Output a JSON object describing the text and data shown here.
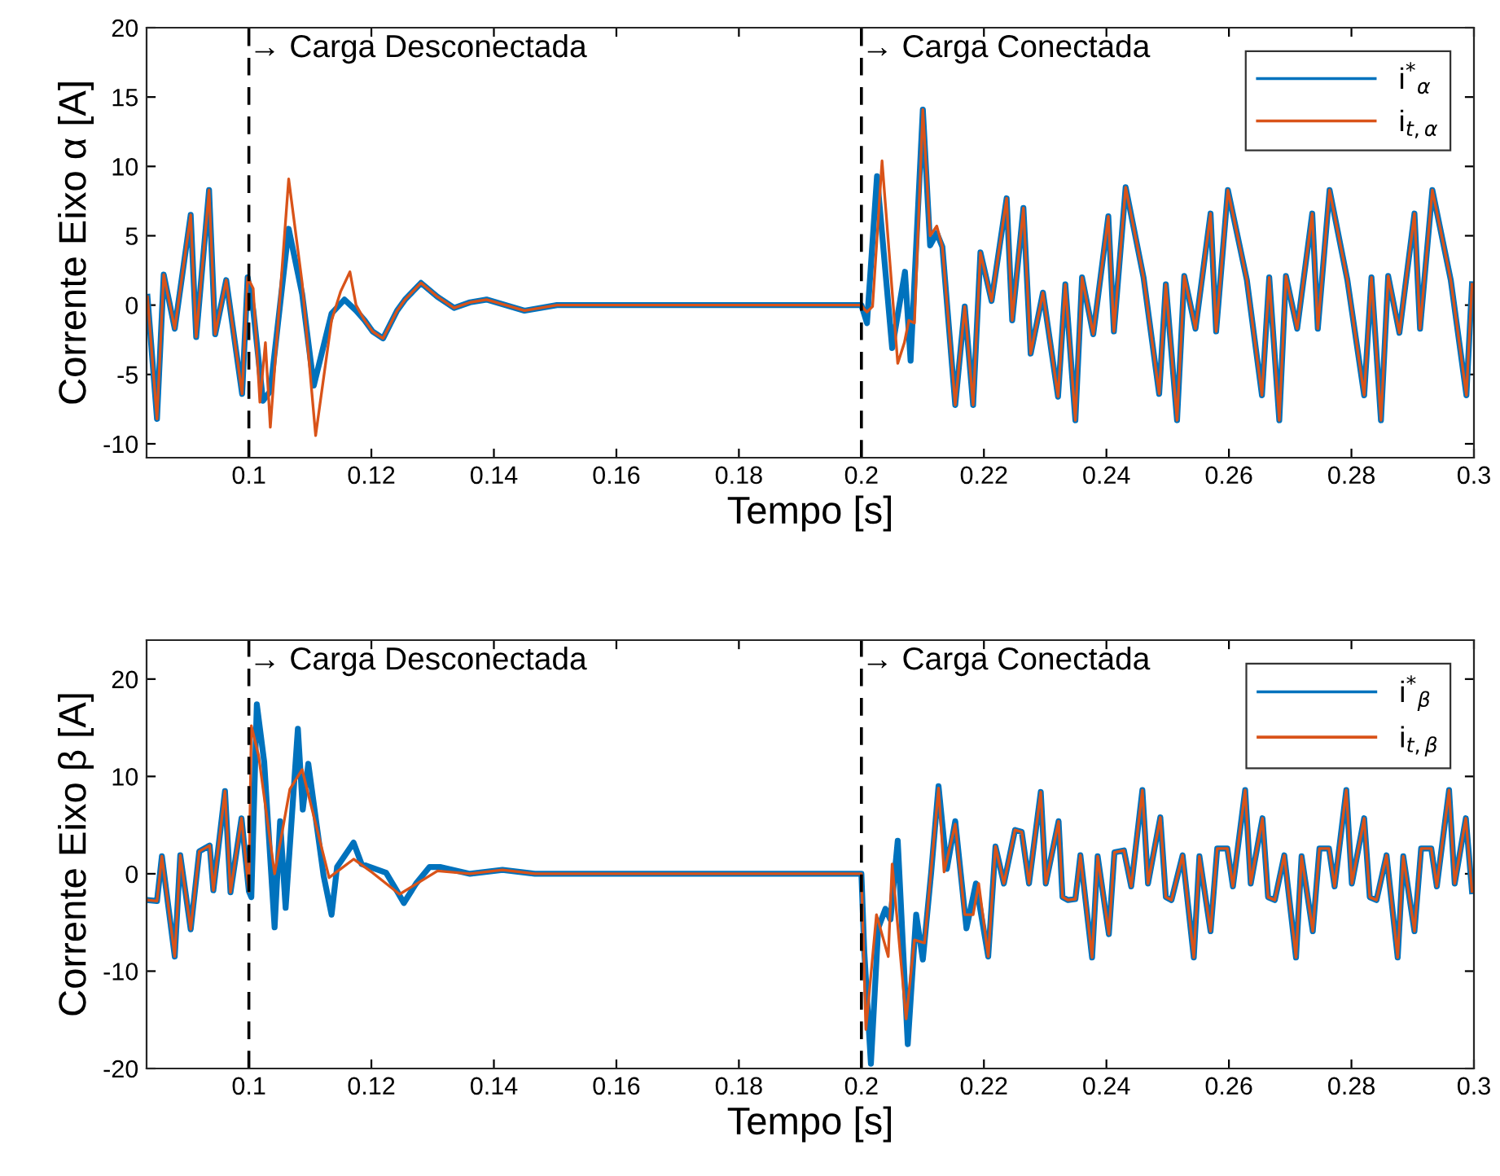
{
  "chart_data": [
    {
      "type": "line",
      "xlabel": "Tempo [s]",
      "ylabel": "Corrente Eixo α [A]",
      "xlim": [
        0.0833,
        0.3
      ],
      "ylim": [
        -11,
        20
      ],
      "xticks": [
        0.1,
        0.12,
        0.14,
        0.16,
        0.18,
        0.2,
        0.22,
        0.24,
        0.26,
        0.28,
        0.3
      ],
      "yticks": [
        -10,
        -5,
        0,
        5,
        10,
        15,
        20
      ],
      "grid": false,
      "legend": "top right",
      "line_style": "solid",
      "marker": "none",
      "ref_lines": [
        {
          "axis": "x",
          "value": 0.1,
          "label": "→ Carga Desconectada",
          "color": "#000000",
          "line_style": "dashed"
        },
        {
          "axis": "x",
          "value": 0.2,
          "label": "→ Carga Conectada",
          "color": "#000000",
          "line_style": "dashed"
        }
      ],
      "series": [
        {
          "name": "i$^{*}$$_{α}$",
          "color": "#0072bd",
          "x": [
            0.08345,
            0.085,
            0.0861,
            0.0879,
            0.0905,
            0.0914,
            0.0935,
            0.0945,
            0.0963,
            0.0989,
            0.0998,
            0.1007,
            0.1023,
            0.1035,
            0.1065,
            0.1087,
            0.1106,
            0.1135,
            0.1156,
            0.1175,
            0.1189,
            0.1202,
            0.1219,
            0.1242,
            0.1255,
            0.1281,
            0.1308,
            0.1335,
            0.1361,
            0.1388,
            0.145,
            0.1503,
            0.1627,
            0.2,
            0.20091,
            0.20255,
            0.20502,
            0.20711,
            0.20803,
            0.21003,
            0.21122,
            0.21231,
            0.21322,
            0.21532,
            0.21687,
            0.21824,
            0.21943,
            0.22125,
            0.22371,
            0.22462,
            0.22645,
            0.22763,
            0.22964,
            0.2321,
            0.23329,
            0.23493,
            0.23602,
            0.23785,
            0.24031,
            0.24122,
            0.24314,
            0.24606,
            0.24861,
            0.2497,
            0.25153,
            0.25271,
            0.25454,
            0.257,
            0.25791,
            0.25983,
            0.26293,
            0.26539,
            0.26658,
            0.26822,
            0.26931,
            0.27114,
            0.2736,
            0.27451,
            0.27643,
            0.27934,
            0.28208,
            0.28327,
            0.28482,
            0.286,
            0.28783,
            0.29029,
            0.2912,
            0.29321,
            0.29622,
            0.29877,
            0.29968
          ],
          "values": [
            0.6,
            -8.2,
            2.2,
            -1.7,
            6.5,
            -2.3,
            8.3,
            -2.1,
            1.8,
            -6.4,
            2.0,
            -0.3,
            -6.9,
            -6.2,
            5.5,
            0.8,
            -5.8,
            -0.6,
            0.4,
            -0.4,
            -1.1,
            -1.9,
            -2.4,
            -0.4,
            0.4,
            1.6,
            0.6,
            -0.2,
            0.2,
            0.4,
            -0.4,
            0,
            0,
            0,
            -1.3,
            9.3,
            -3.1,
            2.4,
            -4.0,
            14.1,
            4.3,
            5.2,
            4.2,
            -7.2,
            -0.1,
            -7.2,
            3.8,
            0.3,
            7.7,
            -1.1,
            7.0,
            -3.5,
            0.9,
            -6.6,
            1.5,
            -8.3,
            2.0,
            -2.1,
            6.4,
            -1.9,
            8.5,
            2.0,
            -6.4,
            1.5,
            -8.3,
            2.1,
            -1.7,
            6.6,
            -1.9,
            8.3,
            1.8,
            -6.5,
            2.0,
            -8.3,
            2.1,
            -1.7,
            6.6,
            -1.7,
            8.3,
            1.8,
            -6.5,
            2.0,
            -8.3,
            2.1,
            -2.0,
            6.6,
            -1.7,
            8.3,
            1.8,
            -6.5,
            1.5
          ]
        },
        {
          "name": "i$_{t,α}$",
          "color": "#d95319",
          "x": [
            0.08345,
            0.085,
            0.0861,
            0.0879,
            0.0905,
            0.0914,
            0.0935,
            0.0945,
            0.0963,
            0.0989,
            0.0998,
            0.1007,
            0.1018,
            0.1027,
            0.1035,
            0.1065,
            0.1087,
            0.1109,
            0.1135,
            0.115,
            0.1165,
            0.1175,
            0.1189,
            0.1202,
            0.1219,
            0.1242,
            0.1255,
            0.1281,
            0.1308,
            0.1335,
            0.1361,
            0.1388,
            0.145,
            0.1503,
            0.1627,
            0.2,
            0.20046,
            0.20091,
            0.20182,
            0.20337,
            0.20593,
            0.20702,
            0.20775,
            0.20866,
            0.21003,
            0.21122,
            0.21231,
            0.21322,
            0.21532,
            0.21687,
            0.21824,
            0.21943,
            0.22125,
            0.22371,
            0.22462,
            0.22645,
            0.22763,
            0.22964,
            0.2321,
            0.23329,
            0.23493,
            0.23602,
            0.23785,
            0.24031,
            0.24122,
            0.24314,
            0.24606,
            0.24861,
            0.2497,
            0.25153,
            0.25271,
            0.25454,
            0.257,
            0.25791,
            0.25983,
            0.26293,
            0.26539,
            0.26658,
            0.26822,
            0.26931,
            0.27114,
            0.2736,
            0.27451,
            0.27643,
            0.27934,
            0.28208,
            0.28327,
            0.28482,
            0.286,
            0.28783,
            0.29029,
            0.2912,
            0.29321,
            0.29622,
            0.29877,
            0.29968
          ],
          "values": [
            0.6,
            -8.2,
            2.2,
            -1.7,
            6.5,
            -2.3,
            8.3,
            -2.1,
            1.8,
            -6.4,
            2.0,
            1.2,
            -7.0,
            -2.7,
            -8.8,
            9.1,
            1.6,
            -9.4,
            -1.1,
            1.0,
            2.4,
            0.0,
            -1.1,
            -1.9,
            -2.4,
            -0.4,
            0.4,
            1.6,
            0.6,
            -0.2,
            0.2,
            0.4,
            -0.4,
            0,
            0,
            0,
            -0.3,
            -0.5,
            -0.1,
            10.4,
            -4.2,
            -2.7,
            -1.1,
            -1.3,
            14.1,
            5.0,
            5.7,
            4.2,
            -7.2,
            -0.1,
            -7.2,
            3.8,
            0.3,
            7.7,
            -1.1,
            7.0,
            -3.5,
            0.9,
            -6.6,
            1.5,
            -8.3,
            2.0,
            -2.1,
            6.4,
            -1.9,
            8.5,
            2.0,
            -6.4,
            1.5,
            -8.3,
            2.1,
            -1.7,
            6.6,
            -1.9,
            8.3,
            1.8,
            -6.5,
            2.0,
            -8.3,
            2.1,
            -1.7,
            6.6,
            -1.7,
            8.3,
            1.8,
            -6.5,
            2.0,
            -8.3,
            2.1,
            -2.0,
            6.6,
            -1.7,
            8.3,
            1.8,
            -6.5,
            1.5
          ]
        }
      ]
    },
    {
      "type": "line",
      "xlabel": "Tempo [s]",
      "ylabel": "Corrente Eixo β [A]",
      "xlim": [
        0.0833,
        0.3
      ],
      "ylim": [
        -20,
        24
      ],
      "xticks": [
        0.1,
        0.12,
        0.14,
        0.16,
        0.18,
        0.2,
        0.22,
        0.24,
        0.26,
        0.28,
        0.3
      ],
      "yticks": [
        -20,
        -10,
        0,
        10,
        20
      ],
      "grid": false,
      "legend": "top right",
      "line_style": "solid",
      "marker": "none",
      "ref_lines": [
        {
          "axis": "x",
          "value": 0.1,
          "label": "→ Carga Desconectada",
          "color": "#000000",
          "line_style": "dashed"
        },
        {
          "axis": "x",
          "value": 0.2,
          "label": "→ Carga Conectada",
          "color": "#000000",
          "line_style": "dashed"
        }
      ],
      "series": [
        {
          "name": "i$^{*}$$_{β}$",
          "color": "#0072bd",
          "x": [
            0.08345,
            0.085,
            0.0858,
            0.0879,
            0.0888,
            0.0905,
            0.0919,
            0.0936,
            0.0942,
            0.0961,
            0.097,
            0.0988,
            0.1,
            0.1004,
            0.1013,
            0.1025,
            0.1042,
            0.1051,
            0.106,
            0.108,
            0.1088,
            0.1097,
            0.1122,
            0.1135,
            0.1144,
            0.1171,
            0.1184,
            0.1224,
            0.1242,
            0.1253,
            0.1273,
            0.1295,
            0.1312,
            0.1361,
            0.1414,
            0.1467,
            0.1627,
            0.2,
            0.20046,
            0.20155,
            0.20274,
            0.20392,
            0.20474,
            0.20593,
            0.20757,
            0.20894,
            0.21003,
            0.2114,
            0.21259,
            0.21395,
            0.21532,
            0.21715,
            0.2187,
            0.2207,
            0.22189,
            0.22326,
            0.22508,
            0.22617,
            0.22736,
            0.22928,
            0.2301,
            0.23219,
            0.23283,
            0.23374,
            0.23493,
            0.23575,
            0.23766,
            0.23857,
            0.2404,
            0.24131,
            0.24286,
            0.24405,
            0.24587,
            0.24679,
            0.2488,
            0.2497,
            0.25062,
            0.25244,
            0.25426,
            0.25518,
            0.257,
            0.25809,
            0.25974,
            0.26065,
            0.26265,
            0.26356,
            0.26548,
            0.26639,
            0.26749,
            0.26904,
            0.27095,
            0.27186,
            0.27369,
            0.27478,
            0.27633,
            0.27725,
            0.27916,
            0.28007,
            0.28208,
            0.28299,
            0.28409,
            0.28573,
            0.28755,
            0.28846,
            0.29029,
            0.29138,
            0.29303,
            0.29394,
            0.29594,
            0.29686,
            0.29868,
            0.29968
          ],
          "values": [
            -2.7,
            -2.8,
            1.8,
            -8.5,
            1.9,
            -5.7,
            2.3,
            2.9,
            -1.7,
            8.5,
            -1.9,
            5.7,
            -1.8,
            -2.4,
            17.4,
            11.5,
            -5.5,
            5.4,
            -3.5,
            14.9,
            6.6,
            11.3,
            -0.2,
            -4.2,
            0.7,
            3.2,
            1.0,
            0.1,
            -1.8,
            -3.0,
            -1.0,
            0.7,
            0.7,
            0,
            0.4,
            0,
            0,
            0,
            -7.9,
            -19.5,
            -5.6,
            -3.6,
            -4.7,
            3.4,
            -17.5,
            -4.2,
            -8.8,
            0.2,
            9.0,
            0.5,
            5.4,
            -5.6,
            -1.0,
            -8.5,
            2.8,
            -1.0,
            4.5,
            4.3,
            -1.0,
            8.4,
            -1.0,
            5.4,
            -2.4,
            -2.7,
            -2.6,
            1.9,
            -8.6,
            1.8,
            -6.2,
            2.2,
            2.4,
            -1.3,
            8.6,
            -1.0,
            5.8,
            -2.4,
            -2.7,
            1.9,
            -8.6,
            1.8,
            -5.9,
            2.6,
            2.6,
            -1.3,
            8.6,
            -1.0,
            5.7,
            -2.4,
            -2.7,
            1.9,
            -8.6,
            1.8,
            -5.9,
            2.6,
            2.6,
            -1.3,
            8.6,
            -1.0,
            5.7,
            -2.4,
            -2.7,
            1.9,
            -8.6,
            1.8,
            -5.9,
            2.6,
            2.6,
            -1.3,
            8.6,
            -1.0,
            5.7,
            -1.8
          ]
        },
        {
          "name": "i$_{t,β}$",
          "color": "#d95319",
          "x": [
            0.08345,
            0.085,
            0.0858,
            0.0879,
            0.0888,
            0.0905,
            0.0919,
            0.0936,
            0.0942,
            0.0961,
            0.097,
            0.0988,
            0.1,
            0.1004,
            0.1016,
            0.1042,
            0.1067,
            0.1087,
            0.1131,
            0.1171,
            0.1202,
            0.1246,
            0.1308,
            0.1361,
            0.1414,
            0.1467,
            0.1627,
            0.2,
            0.20073,
            0.20246,
            0.20438,
            0.20502,
            0.2073,
            0.20866,
            0.21031,
            0.21259,
            0.2135,
            0.21532,
            0.21687,
            0.21824,
            0.21915,
            0.2207,
            0.22189,
            0.22326,
            0.22508,
            0.22617,
            0.22736,
            0.22928,
            0.2301,
            0.23219,
            0.23283,
            0.23374,
            0.23493,
            0.23575,
            0.23766,
            0.23857,
            0.2404,
            0.24131,
            0.24286,
            0.24405,
            0.24587,
            0.24679,
            0.2488,
            0.2497,
            0.25062,
            0.25244,
            0.25426,
            0.25518,
            0.257,
            0.25809,
            0.25974,
            0.26065,
            0.26265,
            0.26356,
            0.26548,
            0.26639,
            0.26749,
            0.26904,
            0.27095,
            0.27186,
            0.27369,
            0.27478,
            0.27633,
            0.27725,
            0.27916,
            0.28007,
            0.28208,
            0.28299,
            0.28409,
            0.28573,
            0.28755,
            0.28846,
            0.29029,
            0.29138,
            0.29303,
            0.29394,
            0.29594,
            0.29686,
            0.29868,
            0.29968
          ],
          "values": [
            -2.7,
            -2.8,
            1.8,
            -8.5,
            1.9,
            -5.7,
            2.3,
            2.9,
            -1.7,
            8.5,
            -1.9,
            5.7,
            -1.8,
            15.2,
            12.1,
            0,
            8.7,
            10.7,
            -0.4,
            1.5,
            0.1,
            -2.1,
            0.3,
            0,
            0.4,
            0,
            0,
            0,
            -16.0,
            -4.2,
            -8.5,
            1.0,
            -14.9,
            -6.8,
            -7.1,
            8.8,
            0.2,
            5.1,
            -4.2,
            -4.2,
            -1.0,
            -8.5,
            2.8,
            -1.0,
            4.5,
            4.3,
            -1.0,
            8.4,
            -1.0,
            5.4,
            -2.4,
            -2.7,
            -2.6,
            1.9,
            -8.6,
            1.8,
            -6.2,
            2.2,
            2.4,
            -1.3,
            8.6,
            -1.0,
            5.8,
            -2.4,
            -2.7,
            1.9,
            -8.6,
            1.8,
            -5.9,
            2.6,
            2.6,
            -1.3,
            8.6,
            -1.0,
            5.7,
            -2.4,
            -2.7,
            1.9,
            -8.6,
            1.8,
            -5.9,
            2.6,
            2.6,
            -1.3,
            8.6,
            -1.0,
            5.7,
            -2.4,
            -2.7,
            1.9,
            -8.6,
            1.8,
            -5.9,
            2.6,
            2.6,
            -1.3,
            8.6,
            -1.0,
            5.7,
            -1.8
          ]
        }
      ]
    }
  ]
}
